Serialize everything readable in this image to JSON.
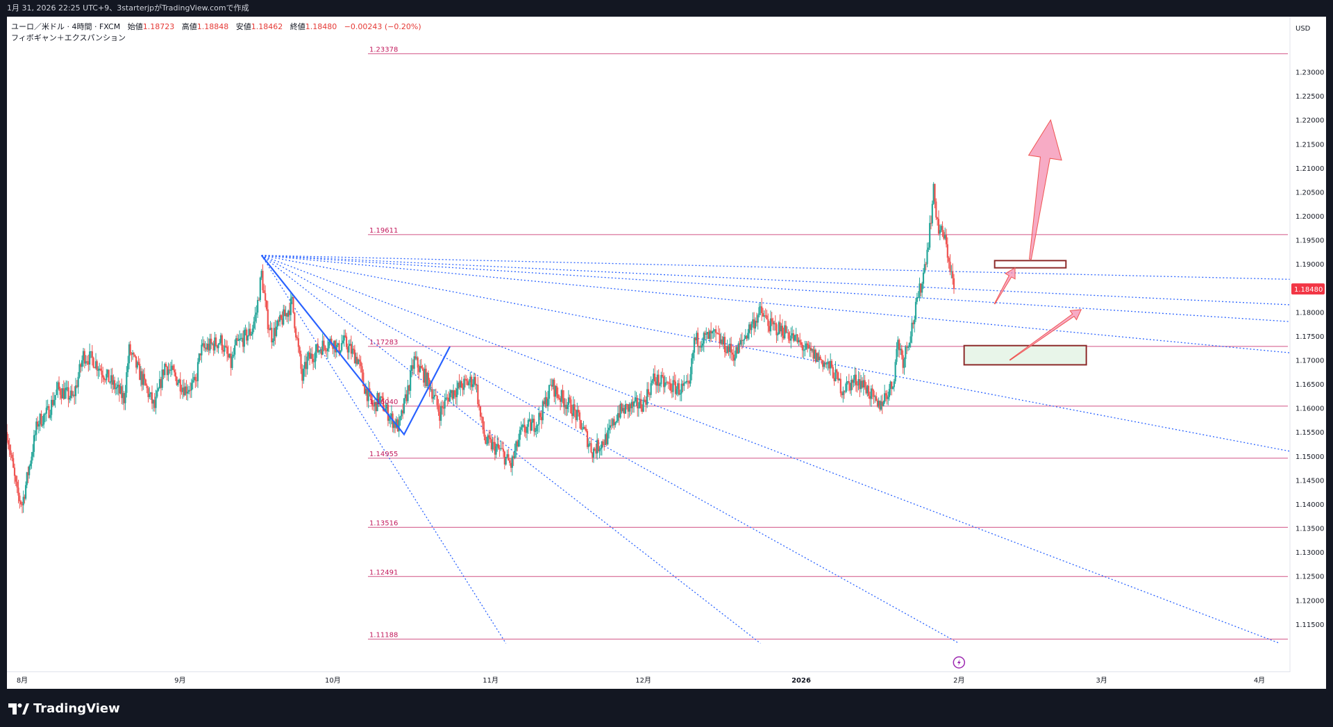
{
  "header": {
    "text": "1月 31, 2026 22:25 UTC+9、3starterjpがTradingView.comで作成"
  },
  "legend": {
    "symbol": "ユーロ／米ドル · 4時間 · FXCM",
    "open_label": "始値",
    "open": "1.18723",
    "high_label": "高値",
    "high": "1.18848",
    "low_label": "安値",
    "low": "1.18462",
    "close_label": "終値",
    "close": "1.18480",
    "change": "−0.00243 (−0.20%)",
    "indicator": "フィボギャン＋エクスパンション"
  },
  "branding": {
    "logo_text": "TradingView"
  },
  "colors": {
    "up": "#26a69a",
    "down": "#ef5350",
    "fib": "#c2185b",
    "fan": "#2962ff",
    "wave": "#2962ff",
    "arrow": "#f48fb1",
    "box_border": "#8d2a2a",
    "support_fill": "#e8f5e9",
    "price_badge": "#f23645"
  },
  "chart_data": {
    "type": "candlestick",
    "symbol": "ユーロ／米ドル",
    "currency": "USD",
    "ylim": [
      1.105,
      1.2415
    ],
    "xlim": [
      "2025-07-29",
      "2026-04-07"
    ],
    "y_ticks": [
      "1.23000",
      "1.22500",
      "1.22000",
      "1.21500",
      "1.21000",
      "1.20500",
      "1.20000",
      "1.19500",
      "1.19000",
      "1.18500",
      "1.18000",
      "1.17500",
      "1.17000",
      "1.16500",
      "1.16000",
      "1.15500",
      "1.15000",
      "1.14500",
      "1.14000",
      "1.13500",
      "1.13000",
      "1.12500",
      "1.12000",
      "1.11500"
    ],
    "x_ticks": [
      {
        "date": "2025-08-01",
        "label": "8月"
      },
      {
        "date": "2025-09-01",
        "label": "9月"
      },
      {
        "date": "2025-10-01",
        "label": "10月"
      },
      {
        "date": "2025-11-01",
        "label": "11月"
      },
      {
        "date": "2025-12-01",
        "label": "12月"
      },
      {
        "date": "2026-01-01",
        "label": "2026"
      },
      {
        "date": "2026-02-01",
        "label": "2月"
      },
      {
        "date": "2026-03-01",
        "label": "3月"
      },
      {
        "date": "2026-04-01",
        "label": "4月"
      }
    ],
    "last_price": "1.18480",
    "fib_levels": [
      {
        "value": 1.23378,
        "label": "1.23378"
      },
      {
        "value": 1.19611,
        "label": "1.19611"
      },
      {
        "value": 1.17283,
        "label": "1.17283"
      },
      {
        "value": 1.1604,
        "label": "1.16040"
      },
      {
        "value": 1.14955,
        "label": "1.14955"
      },
      {
        "value": 1.13516,
        "label": "1.13516"
      },
      {
        "value": 1.12491,
        "label": "1.12491"
      },
      {
        "value": 1.11188,
        "label": "1.11188"
      }
    ],
    "price_path": [
      [
        "2025-07-29",
        1.155
      ],
      [
        "2025-07-31",
        1.142
      ],
      [
        "2025-08-01",
        1.14
      ],
      [
        "2025-08-04",
        1.157
      ],
      [
        "2025-08-06",
        1.159
      ],
      [
        "2025-08-08",
        1.164
      ],
      [
        "2025-08-11",
        1.162
      ],
      [
        "2025-08-13",
        1.171
      ],
      [
        "2025-08-15",
        1.17
      ],
      [
        "2025-08-18",
        1.166
      ],
      [
        "2025-08-21",
        1.162
      ],
      [
        "2025-08-22",
        1.172
      ],
      [
        "2025-08-25",
        1.165
      ],
      [
        "2025-08-27",
        1.16
      ],
      [
        "2025-08-29",
        1.169
      ],
      [
        "2025-09-02",
        1.164
      ],
      [
        "2025-09-04",
        1.165
      ],
      [
        "2025-09-05",
        1.172
      ],
      [
        "2025-09-09",
        1.174
      ],
      [
        "2025-09-11",
        1.169
      ],
      [
        "2025-09-12",
        1.173
      ],
      [
        "2025-09-15",
        1.176
      ],
      [
        "2025-09-16",
        1.18
      ],
      [
        "2025-09-17",
        1.188
      ],
      [
        "2025-09-18",
        1.179
      ],
      [
        "2025-09-19",
        1.175
      ],
      [
        "2025-09-22",
        1.18
      ],
      [
        "2025-09-23",
        1.182
      ],
      [
        "2025-09-25",
        1.166
      ],
      [
        "2025-09-26",
        1.17
      ],
      [
        "2025-09-29",
        1.173
      ],
      [
        "2025-10-01",
        1.174
      ],
      [
        "2025-10-02",
        1.172
      ],
      [
        "2025-10-03",
        1.174
      ],
      [
        "2025-10-06",
        1.17
      ],
      [
        "2025-10-07",
        1.165
      ],
      [
        "2025-10-09",
        1.16
      ],
      [
        "2025-10-10",
        1.162
      ],
      [
        "2025-10-13",
        1.157
      ],
      [
        "2025-10-14",
        1.156
      ],
      [
        "2025-10-16",
        1.165
      ],
      [
        "2025-10-17",
        1.17
      ],
      [
        "2025-10-20",
        1.165
      ],
      [
        "2025-10-22",
        1.159
      ],
      [
        "2025-10-24",
        1.163
      ],
      [
        "2025-10-27",
        1.165
      ],
      [
        "2025-10-29",
        1.166
      ],
      [
        "2025-10-30",
        1.158
      ],
      [
        "2025-10-31",
        1.153
      ],
      [
        "2025-11-03",
        1.151
      ],
      [
        "2025-11-05",
        1.148
      ],
      [
        "2025-11-07",
        1.155
      ],
      [
        "2025-11-10",
        1.157
      ],
      [
        "2025-11-11",
        1.159
      ],
      [
        "2025-11-13",
        1.165
      ],
      [
        "2025-11-14",
        1.163
      ],
      [
        "2025-11-17",
        1.16
      ],
      [
        "2025-11-19",
        1.156
      ],
      [
        "2025-11-21",
        1.151
      ],
      [
        "2025-11-24",
        1.154
      ],
      [
        "2025-11-26",
        1.159
      ],
      [
        "2025-11-28",
        1.16
      ],
      [
        "2025-12-01",
        1.161
      ],
      [
        "2025-12-03",
        1.166
      ],
      [
        "2025-12-05",
        1.165
      ],
      [
        "2025-12-08",
        1.164
      ],
      [
        "2025-12-10",
        1.164
      ],
      [
        "2025-12-11",
        1.174
      ],
      [
        "2025-12-15",
        1.175
      ],
      [
        "2025-12-17",
        1.173
      ],
      [
        "2025-12-19",
        1.171
      ],
      [
        "2025-12-22",
        1.177
      ],
      [
        "2025-12-24",
        1.18
      ],
      [
        "2025-12-26",
        1.177
      ],
      [
        "2025-12-29",
        1.176
      ],
      [
        "2025-12-31",
        1.174
      ],
      [
        "2026-01-02",
        1.172
      ],
      [
        "2026-01-05",
        1.17
      ],
      [
        "2026-01-07",
        1.168
      ],
      [
        "2026-01-09",
        1.164
      ],
      [
        "2026-01-12",
        1.166
      ],
      [
        "2026-01-14",
        1.164
      ],
      [
        "2026-01-16",
        1.16
      ],
      [
        "2026-01-19",
        1.165
      ],
      [
        "2026-01-20",
        1.174
      ],
      [
        "2026-01-21",
        1.17
      ],
      [
        "2026-01-23",
        1.178
      ],
      [
        "2026-01-25",
        1.188
      ],
      [
        "2026-01-26",
        1.195
      ],
      [
        "2026-01-27",
        1.205
      ],
      [
        "2026-01-28",
        1.197
      ],
      [
        "2026-01-29",
        1.196
      ],
      [
        "2026-01-30",
        1.191
      ],
      [
        "2026-01-31",
        1.1848
      ]
    ],
    "gann_fan": {
      "origin": [
        "2025-09-17",
        1.1918
      ],
      "points": [
        [
          "2026-04-07",
          1.1868
        ],
        [
          "2026-04-07",
          1.1815
        ],
        [
          "2026-04-07",
          1.178
        ],
        [
          "2026-04-07",
          1.1715
        ],
        [
          "2026-04-07",
          1.151
        ],
        [
          "2026-04-05",
          1.111
        ],
        [
          "2026-02-01",
          1.111
        ],
        [
          "2025-12-24",
          1.111
        ],
        [
          "2025-11-04",
          1.111
        ]
      ]
    },
    "wave": [
      [
        "2025-09-17",
        1.1918
      ],
      [
        "2025-10-15",
        1.1545
      ],
      [
        "2025-10-24",
        1.1728
      ]
    ],
    "zones": [
      {
        "from": "2026-02-08",
        "to": "2026-02-22",
        "low": 1.1892,
        "high": 1.1907,
        "fill": "none"
      },
      {
        "from": "2026-02-02",
        "to": "2026-02-26",
        "low": 1.169,
        "high": 1.173,
        "fill": "green"
      }
    ],
    "arrows": [
      {
        "from": [
          "2026-02-08",
          1.1817
        ],
        "to": [
          "2026-02-12",
          1.1892
        ]
      },
      {
        "from": [
          "2026-02-11",
          1.17
        ],
        "to": [
          "2026-02-25",
          1.1805
        ]
      },
      {
        "from": [
          "2026-02-15",
          1.191
        ],
        "to": [
          "2026-02-19",
          1.22
        ]
      }
    ]
  }
}
